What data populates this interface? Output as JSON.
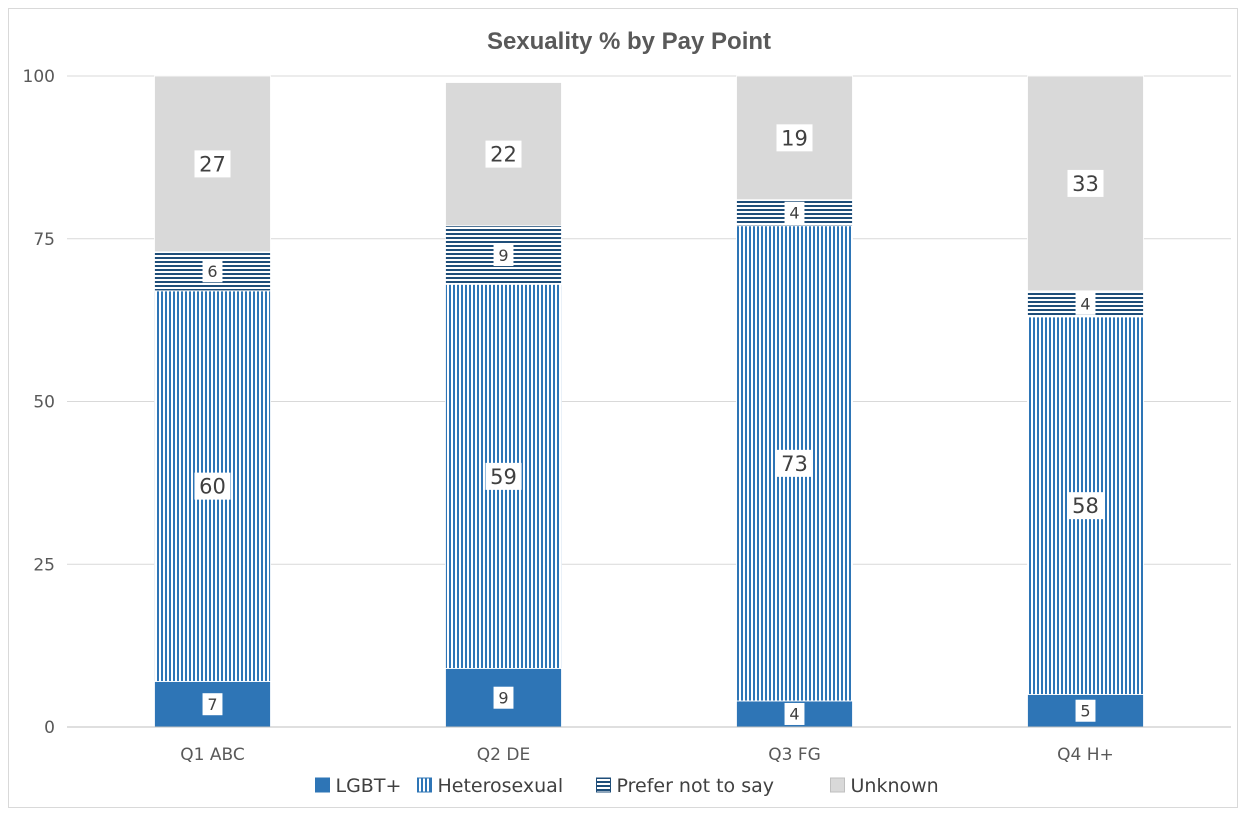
{
  "chart_data": {
    "type": "bar",
    "stacked": true,
    "title": "Sexuality % by Pay Point",
    "xlabel": "",
    "ylabel": "",
    "categories": [
      "Q1 ABC",
      "Q2 DE",
      "Q3 FG",
      "Q4 H+"
    ],
    "ylim": [
      0,
      100
    ],
    "yticks": [
      0,
      25,
      50,
      75,
      100
    ],
    "grid": true,
    "legend_position": "bottom",
    "series": [
      {
        "name": "LGBT+",
        "values": [
          7,
          9,
          4,
          5
        ],
        "color": "#2e75b6",
        "pattern": "solid"
      },
      {
        "name": "Heterosexual",
        "values": [
          60,
          59,
          73,
          58
        ],
        "color": "#2e75b6",
        "pattern": "vertical-lines"
      },
      {
        "name": "Prefer not to say",
        "values": [
          6,
          9,
          4,
          4
        ],
        "color": "#1f4e79",
        "pattern": "horizontal-lines"
      },
      {
        "name": "Unknown",
        "values": [
          27,
          22,
          19,
          33
        ],
        "color": "#d9d9d9",
        "pattern": "solid"
      }
    ]
  }
}
